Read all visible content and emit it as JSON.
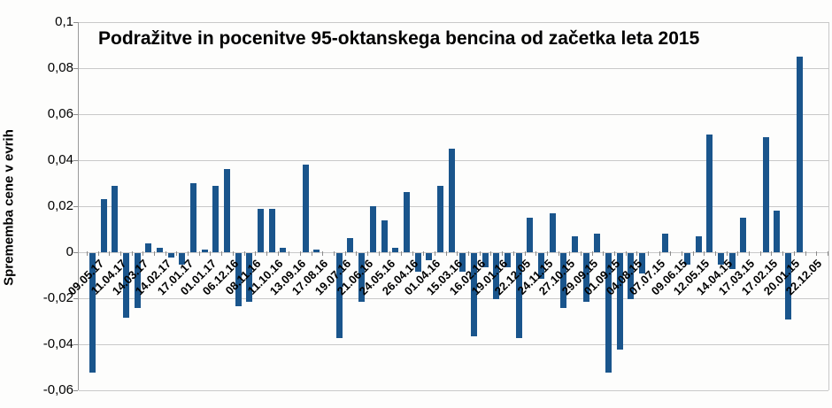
{
  "title": "Podražitve in pocenitve 95-oktanskega bencina od začetka leta 2015",
  "y_axis": {
    "title": "Sprememba cene v evrih",
    "ticks": [
      "0,1",
      "0,08",
      "0,06",
      "0,04",
      "0,02",
      "0",
      "-0,02",
      "-0,04",
      "-0,06"
    ],
    "tick_values": [
      0.1,
      0.08,
      0.06,
      0.04,
      0.02,
      0,
      -0.02,
      -0.04,
      -0.06
    ]
  },
  "chart_data": {
    "type": "bar",
    "title": "Podražitve in pocenitve 95-oktanskega bencina od začetka leta 2015",
    "xlabel": "",
    "ylabel": "Sprememba cene v evrih",
    "ylim": [
      -0.06,
      0.1
    ],
    "grid": true,
    "legend": false,
    "bar_color": "#1a558c",
    "gridline_color": "#c9c9c9",
    "label_every": 2,
    "categories": [
      "09.05.17",
      "11.04.17",
      "14.03.17",
      "14.02.17",
      "17.01.17",
      "01.01.17",
      "06.12.16",
      "08.11.16",
      "11.10.16",
      "13.09.16",
      "17.08.16",
      "19.07.16",
      "21.06.16",
      "24.05.16",
      "26.04.16",
      "01.04.16",
      "15.03.16",
      "16.02.16",
      "19.01.16",
      "22.12.05",
      "24.11.15",
      "27.10.15",
      "29.09.15",
      "01.09.15",
      "04.08.15",
      "07.07.15",
      "09.06.15",
      "12.05.15",
      "14.04.15",
      "17.03.15",
      "17.02.15",
      "20.01.15",
      "22.12.05"
    ],
    "values": [
      -0.052,
      0.023,
      0.029,
      -0.028,
      -0.024,
      0.004,
      0.002,
      -0.002,
      -0.005,
      0.03,
      0.001,
      0.029,
      0.036,
      -0.023,
      -0.021,
      0.019,
      0.019,
      0.002,
      0,
      0.038,
      0.001,
      0,
      -0.037,
      0.006,
      -0.021,
      0.02,
      0.014,
      0.002,
      0.026,
      -0.008,
      -0.003,
      0.029,
      0.045,
      -0.008,
      -0.036,
      -0.006,
      -0.02,
      -0.006,
      -0.037,
      0.015,
      -0.011,
      0.017,
      -0.024,
      0.007,
      -0.021,
      0.008,
      -0.052,
      -0.042,
      -0.02,
      -0.009,
      0,
      0.008,
      0,
      -0.005,
      0.007,
      0.051,
      -0.005,
      -0.007,
      0.015,
      0,
      0.05,
      0.018,
      -0.029,
      0.085,
      0,
      0
    ]
  }
}
